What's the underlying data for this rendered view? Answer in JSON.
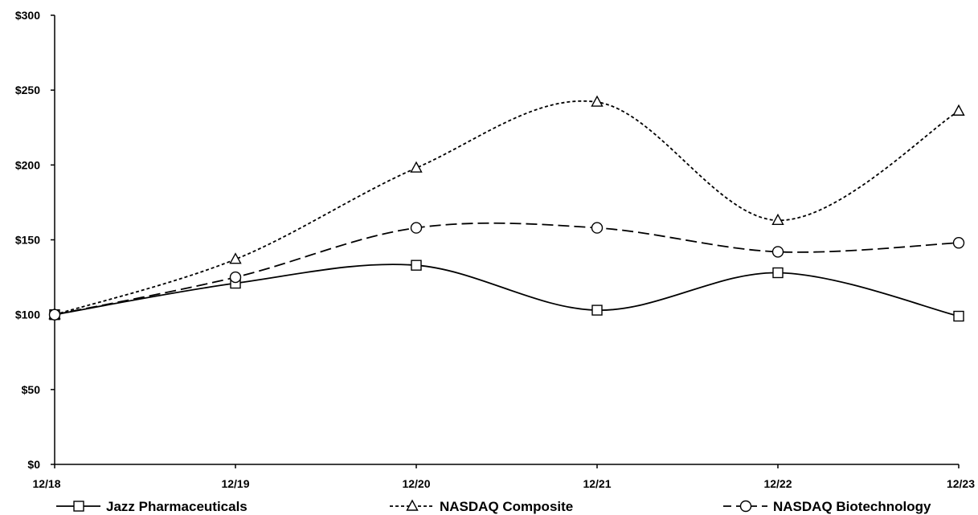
{
  "chart_data": {
    "type": "line",
    "categories": [
      "12/18",
      "12/19",
      "12/20",
      "12/21",
      "12/22",
      "12/23"
    ],
    "ylim": [
      0,
      300
    ],
    "yticks": [
      0,
      50,
      100,
      150,
      200,
      250,
      300
    ],
    "ytick_labels": [
      "$0",
      "$50",
      "$100",
      "$150",
      "$200",
      "$250",
      "$300"
    ],
    "grid": false,
    "legend_position": "bottom",
    "series": [
      {
        "name": "Jazz Pharmaceuticals",
        "marker": "square",
        "dash": "solid",
        "values": [
          100,
          121,
          133,
          103,
          128,
          99
        ]
      },
      {
        "name": "NASDAQ Composite",
        "marker": "triangle",
        "dash": "dotted",
        "values": [
          100,
          137,
          198,
          242,
          163,
          236
        ]
      },
      {
        "name": "NASDAQ Biotechnology",
        "marker": "circle",
        "dash": "dashed",
        "values": [
          100,
          125,
          158,
          158,
          142,
          148
        ]
      }
    ],
    "title": "",
    "xlabel": "",
    "ylabel": ""
  }
}
